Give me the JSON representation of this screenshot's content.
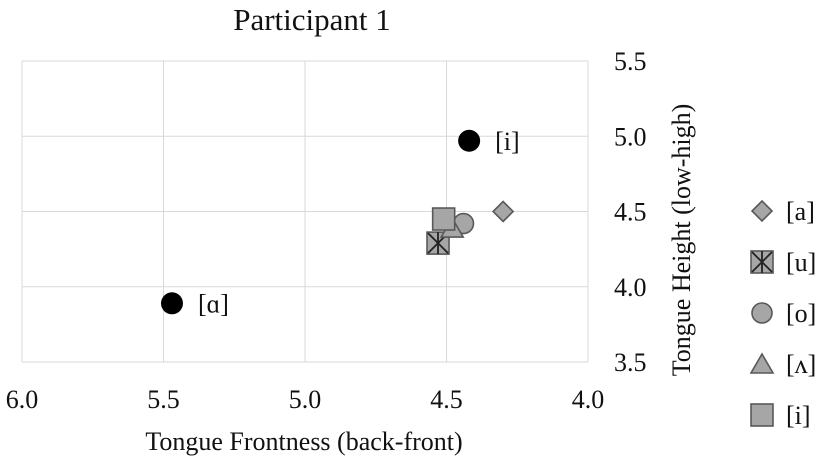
{
  "chart_data": {
    "type": "scatter",
    "title": "Participant 1",
    "xlabel": "Tongue Frontness (back-front)",
    "ylabel": "Tongue Height (low-high)",
    "xlim": [
      6.0,
      4.0
    ],
    "ylim": [
      3.5,
      5.5
    ],
    "x_reversed": true,
    "y_axis_side": "right",
    "x_ticks": [
      "6.0",
      "5.5",
      "5.0",
      "4.5",
      "4.0"
    ],
    "y_ticks": [
      "5.5",
      "5.0",
      "4.5",
      "4.0",
      "3.5"
    ],
    "grid": true,
    "legend_position": "right",
    "series": [
      {
        "name": "[a]",
        "marker": "diamond",
        "color": "#a6a6a6",
        "points": [
          {
            "x": 4.3,
            "y": 4.5
          }
        ]
      },
      {
        "name": "[u]",
        "marker": "asterisk-square",
        "color": "#a6a6a6",
        "points": [
          {
            "x": 4.53,
            "y": 4.29
          }
        ]
      },
      {
        "name": "[o]",
        "marker": "circle",
        "color": "#a6a6a6",
        "points": [
          {
            "x": 4.44,
            "y": 4.42
          }
        ]
      },
      {
        "name": "[ʌ]",
        "marker": "triangle",
        "color": "#a6a6a6",
        "points": [
          {
            "x": 4.48,
            "y": 4.39
          }
        ]
      },
      {
        "name": "[i]",
        "marker": "square",
        "color": "#a6a6a6",
        "points": [
          {
            "x": 4.51,
            "y": 4.45
          }
        ]
      }
    ],
    "reference_points": [
      {
        "label": "[i]",
        "x": 4.42,
        "y": 4.97,
        "color": "#000000"
      },
      {
        "label": "[ɑ]",
        "x": 5.47,
        "y": 3.89,
        "color": "#000000"
      }
    ]
  }
}
